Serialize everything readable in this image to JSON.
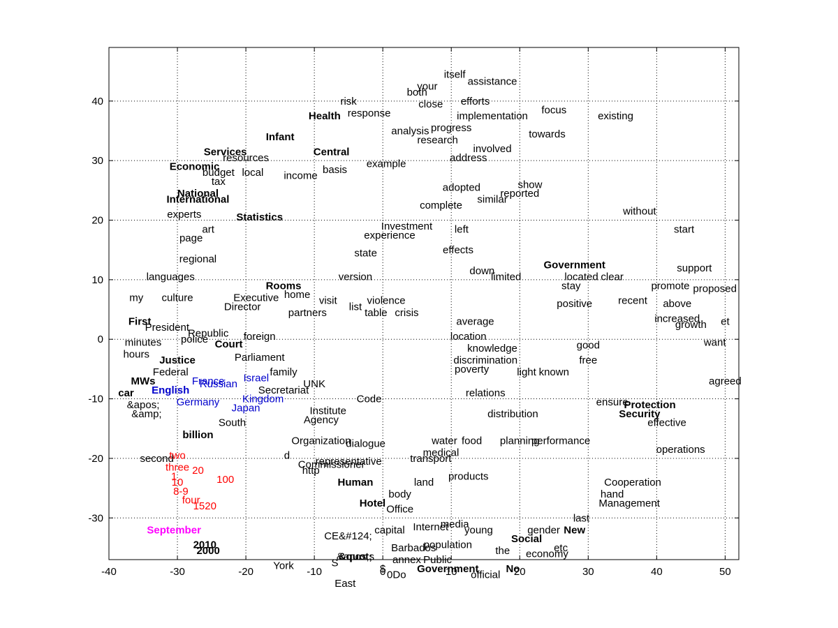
{
  "chart_data": {
    "type": "scatter",
    "title": "",
    "xlabel": "",
    "ylabel": "",
    "xlim": [
      -40,
      52
    ],
    "ylim": [
      -37,
      49
    ],
    "xticks": [
      -40,
      -30,
      -20,
      -10,
      0,
      10,
      20,
      30,
      40,
      50
    ],
    "yticks": [
      -30,
      -20,
      -10,
      0,
      10,
      20,
      30,
      40
    ],
    "xtick_labels": [
      "-40",
      "-30",
      "-20",
      "-10",
      "0",
      "10",
      "20",
      "30",
      "40",
      "50"
    ],
    "ytick_labels": [
      "-30",
      "-20",
      "-10",
      "0",
      "10",
      "20",
      "30",
      "40"
    ],
    "grid": true,
    "grid_style": "dotted",
    "colors": {
      "default": "#000000",
      "country": "#0000cc",
      "number": "#ff0000",
      "month": "#ff00ff"
    },
    "points": [
      {
        "label": "itself",
        "x": 10.5,
        "y": 44.5
      },
      {
        "label": "your",
        "x": 6.5,
        "y": 42.5
      },
      {
        "label": "both",
        "x": 5,
        "y": 41.5
      },
      {
        "label": "assistance",
        "x": 16,
        "y": 43.3
      },
      {
        "label": "risk",
        "x": -5,
        "y": 40
      },
      {
        "label": "close",
        "x": 7,
        "y": 39.5
      },
      {
        "label": "efforts",
        "x": 13.5,
        "y": 40
      },
      {
        "label": "focus",
        "x": 25,
        "y": 38.5
      },
      {
        "label": "existing",
        "x": 34,
        "y": 37.5
      },
      {
        "label": "Health",
        "x": -8.5,
        "y": 37.5,
        "bold": true
      },
      {
        "label": "implementation",
        "x": 16,
        "y": 37.5
      },
      {
        "label": "response",
        "x": -2,
        "y": 38
      },
      {
        "label": "progress",
        "x": 10,
        "y": 35.5
      },
      {
        "label": "towards",
        "x": 24,
        "y": 34.5
      },
      {
        "label": "Infant",
        "x": -15,
        "y": 34,
        "bold": true
      },
      {
        "label": "analysis",
        "x": 4,
        "y": 35
      },
      {
        "label": "research",
        "x": 8,
        "y": 33.5
      },
      {
        "label": "involved",
        "x": 16,
        "y": 32
      },
      {
        "label": "Services",
        "x": -23,
        "y": 31.5,
        "bold": true
      },
      {
        "label": "Central",
        "x": -7.5,
        "y": 31.5,
        "bold": true
      },
      {
        "label": "address",
        "x": 12.5,
        "y": 30.5
      },
      {
        "label": "resources",
        "x": -20,
        "y": 30.5
      },
      {
        "label": "example",
        "x": 0.5,
        "y": 29.5
      },
      {
        "label": "Economic",
        "x": -27.5,
        "y": 29,
        "bold": true
      },
      {
        "label": "budget",
        "x": -24,
        "y": 28
      },
      {
        "label": "local",
        "x": -19,
        "y": 28
      },
      {
        "label": "income",
        "x": -12,
        "y": 27.5
      },
      {
        "label": "basis",
        "x": -7,
        "y": 28.5
      },
      {
        "label": "tax",
        "x": -24,
        "y": 26.5
      },
      {
        "label": "adopted",
        "x": 11.5,
        "y": 25.5
      },
      {
        "label": "show",
        "x": 21.5,
        "y": 26
      },
      {
        "label": "reported",
        "x": 20,
        "y": 24.5
      },
      {
        "label": "National",
        "x": -27,
        "y": 24.5,
        "bold": true
      },
      {
        "label": "International",
        "x": -27,
        "y": 23.5,
        "bold": true
      },
      {
        "label": "complete",
        "x": 8.5,
        "y": 22.5
      },
      {
        "label": "similar",
        "x": 16,
        "y": 23.5
      },
      {
        "label": "Statistics",
        "x": -18,
        "y": 20.5,
        "bold": true
      },
      {
        "label": "experts",
        "x": -29,
        "y": 21
      },
      {
        "label": "without",
        "x": 37.5,
        "y": 21.5
      },
      {
        "label": "Investment",
        "x": 3.5,
        "y": 19
      },
      {
        "label": "left",
        "x": 11.5,
        "y": 18.5
      },
      {
        "label": "art",
        "x": -25.5,
        "y": 18.5
      },
      {
        "label": "experience",
        "x": 1,
        "y": 17.5
      },
      {
        "label": "start",
        "x": 44,
        "y": 18.5
      },
      {
        "label": "page",
        "x": -28,
        "y": 17
      },
      {
        "label": "effects",
        "x": 11,
        "y": 15
      },
      {
        "label": "state",
        "x": -2.5,
        "y": 14.5
      },
      {
        "label": "Government",
        "x": 28,
        "y": 12.5,
        "bold": true
      },
      {
        "label": "regional",
        "x": -27,
        "y": 13.5
      },
      {
        "label": "languages",
        "x": -31,
        "y": 10.5
      },
      {
        "label": "version",
        "x": -4,
        "y": 10.5
      },
      {
        "label": "down",
        "x": 14.5,
        "y": 11.5
      },
      {
        "label": "limited",
        "x": 18,
        "y": 10.5
      },
      {
        "label": "located",
        "x": 29,
        "y": 10.5
      },
      {
        "label": "clear",
        "x": 33.5,
        "y": 10.5
      },
      {
        "label": "support",
        "x": 45.5,
        "y": 12
      },
      {
        "label": "Rooms",
        "x": -14.5,
        "y": 9,
        "bold": true
      },
      {
        "label": "stay",
        "x": 27.5,
        "y": 9
      },
      {
        "label": "promote",
        "x": 42,
        "y": 9
      },
      {
        "label": "proposed",
        "x": 48.5,
        "y": 8.5
      },
      {
        "label": "my",
        "x": -36,
        "y": 7
      },
      {
        "label": "culture",
        "x": -30,
        "y": 7
      },
      {
        "label": "Executive",
        "x": -18.5,
        "y": 7
      },
      {
        "label": "home",
        "x": -12.5,
        "y": 7.5
      },
      {
        "label": "visit",
        "x": -8,
        "y": 6.5
      },
      {
        "label": "list",
        "x": -4,
        "y": 5.5
      },
      {
        "label": "violence",
        "x": 0.5,
        "y": 6.5
      },
      {
        "label": "table",
        "x": -1,
        "y": 4.5
      },
      {
        "label": "crisis",
        "x": 3.5,
        "y": 4.5
      },
      {
        "label": "positive",
        "x": 28,
        "y": 6
      },
      {
        "label": "recent",
        "x": 36.5,
        "y": 6.5
      },
      {
        "label": "above",
        "x": 43,
        "y": 6
      },
      {
        "label": "Director",
        "x": -20.5,
        "y": 5.5
      },
      {
        "label": "partners",
        "x": -11,
        "y": 4.5
      },
      {
        "label": "average",
        "x": 13.5,
        "y": 3
      },
      {
        "label": "increased",
        "x": 43,
        "y": 3.5
      },
      {
        "label": "growth",
        "x": 45,
        "y": 2.5
      },
      {
        "label": "et",
        "x": 50,
        "y": 3
      },
      {
        "label": "First",
        "x": -35.5,
        "y": 3,
        "bold": true
      },
      {
        "label": "President",
        "x": -31.5,
        "y": 2
      },
      {
        "label": "Republic",
        "x": -25.5,
        "y": 1
      },
      {
        "label": "location",
        "x": 12.5,
        "y": 0.5
      },
      {
        "label": "police",
        "x": -27.5,
        "y": 0
      },
      {
        "label": "foreign",
        "x": -18,
        "y": 0.5
      },
      {
        "label": "Court",
        "x": -22.5,
        "y": -0.8,
        "bold": true
      },
      {
        "label": "minutes",
        "x": -35,
        "y": -0.5
      },
      {
        "label": "knowledge",
        "x": 16,
        "y": -1.5
      },
      {
        "label": "good",
        "x": 30,
        "y": -1
      },
      {
        "label": "want",
        "x": 48.5,
        "y": -0.5
      },
      {
        "label": "hours",
        "x": -36,
        "y": -2.5
      },
      {
        "label": "Justice",
        "x": -30,
        "y": -3.5,
        "bold": true
      },
      {
        "label": "Parliament",
        "x": -18,
        "y": -3
      },
      {
        "label": "discrimination",
        "x": 15,
        "y": -3.5
      },
      {
        "label": "free",
        "x": 30,
        "y": -3.5
      },
      {
        "label": "poverty",
        "x": 13,
        "y": -5
      },
      {
        "label": "Federal",
        "x": -31,
        "y": -5.5
      },
      {
        "label": "family",
        "x": -14.5,
        "y": -5.5
      },
      {
        "label": "light",
        "x": 21,
        "y": -5.5
      },
      {
        "label": "known",
        "x": 25,
        "y": -5.5
      },
      {
        "label": "Israel",
        "x": -18.5,
        "y": -6.5,
        "color": "country"
      },
      {
        "label": "MWs",
        "x": -35,
        "y": -7,
        "bold": true
      },
      {
        "label": "agreed",
        "x": 50,
        "y": -7
      },
      {
        "label": "France",
        "x": -25.5,
        "y": -7,
        "color": "country"
      },
      {
        "label": "Russian",
        "x": -24,
        "y": -7.5,
        "color": "country"
      },
      {
        "label": "UNK",
        "x": -10,
        "y": -7.5
      },
      {
        "label": "English",
        "x": -31,
        "y": -8.5,
        "color": "country",
        "bold": true
      },
      {
        "label": "Secretariat",
        "x": -14.5,
        "y": -8.5
      },
      {
        "label": "car",
        "x": -37.5,
        "y": -9,
        "bold": true
      },
      {
        "label": "relations",
        "x": 15,
        "y": -9
      },
      {
        "label": "Kingdom",
        "x": -17.5,
        "y": -10,
        "color": "country"
      },
      {
        "label": "Code",
        "x": -2,
        "y": -10
      },
      {
        "label": "ensure",
        "x": 33.5,
        "y": -10.5
      },
      {
        "label": "Protection",
        "x": 39,
        "y": -11,
        "bold": true
      },
      {
        "label": "Germany",
        "x": -27,
        "y": -10.5,
        "color": "country"
      },
      {
        "label": "&apos;",
        "x": -35,
        "y": -11
      },
      {
        "label": "Japan",
        "x": -20,
        "y": -11.5,
        "color": "country"
      },
      {
        "label": "&amp;",
        "x": -34.5,
        "y": -12.5
      },
      {
        "label": "Institute",
        "x": -8,
        "y": -12
      },
      {
        "label": "Agency",
        "x": -9,
        "y": -13.5
      },
      {
        "label": "South",
        "x": -22,
        "y": -14
      },
      {
        "label": "Security",
        "x": 37.5,
        "y": -12.5,
        "bold": true
      },
      {
        "label": "distribution",
        "x": 19,
        "y": -12.5
      },
      {
        "label": "effective",
        "x": 41.5,
        "y": -14
      },
      {
        "label": "billion",
        "x": -27,
        "y": -16,
        "bold": true
      },
      {
        "label": "Organization",
        "x": -9,
        "y": -17
      },
      {
        "label": "dialogue",
        "x": -2.5,
        "y": -17.5
      },
      {
        "label": "water",
        "x": 9,
        "y": -17
      },
      {
        "label": "food",
        "x": 13,
        "y": -17
      },
      {
        "label": "planning",
        "x": 20,
        "y": -17
      },
      {
        "label": "performance",
        "x": 26,
        "y": -17
      },
      {
        "label": "operations",
        "x": 43.5,
        "y": -18.5
      },
      {
        "label": "medical",
        "x": 8.5,
        "y": -19
      },
      {
        "label": "second",
        "x": -33,
        "y": -20
      },
      {
        "label": "two",
        "x": -30,
        "y": -19.5,
        "color": "number"
      },
      {
        "label": "d",
        "x": -14,
        "y": -19.5
      },
      {
        "label": "transport",
        "x": 7,
        "y": -20
      },
      {
        "label": "representative",
        "x": -5,
        "y": -20.5
      },
      {
        "label": "Commissioner",
        "x": -7.5,
        "y": -21
      },
      {
        "label": "three",
        "x": -30,
        "y": -21.5,
        "color": "number"
      },
      {
        "label": "http",
        "x": -10.5,
        "y": -22
      },
      {
        "label": "products",
        "x": 12.5,
        "y": -23
      },
      {
        "label": "Human",
        "x": -4,
        "y": -24,
        "bold": true
      },
      {
        "label": "land",
        "x": 6,
        "y": -24
      },
      {
        "label": "Cooperation",
        "x": 36.5,
        "y": -24
      },
      {
        "label": "hand",
        "x": 33.5,
        "y": -26
      },
      {
        "label": "body",
        "x": 2.5,
        "y": -26
      },
      {
        "label": "Management",
        "x": 36,
        "y": -27.5
      },
      {
        "label": "Hotel",
        "x": -1.5,
        "y": -27.5,
        "bold": true
      },
      {
        "label": "Office",
        "x": 2.5,
        "y": -28.5
      },
      {
        "label": "last",
        "x": 29,
        "y": -30
      },
      {
        "label": "Internet",
        "x": 7,
        "y": -31.5
      },
      {
        "label": "media",
        "x": 10.5,
        "y": -31
      },
      {
        "label": "capital",
        "x": 1,
        "y": -32
      },
      {
        "label": "gender",
        "x": 23.5,
        "y": -32
      },
      {
        "label": "New",
        "x": 28,
        "y": -32,
        "bold": true
      },
      {
        "label": "young",
        "x": 14,
        "y": -32
      },
      {
        "label": "Social",
        "x": 21,
        "y": -33.5,
        "bold": true
      },
      {
        "label": "CE",
        "x": -7.5,
        "y": -33
      },
      {
        "label": "&#124;",
        "x": -4,
        "y": -33
      },
      {
        "label": "population",
        "x": 9.5,
        "y": -34.5
      },
      {
        "label": "Barbados",
        "x": 4.5,
        "y": -35
      },
      {
        "label": "the",
        "x": 17.5,
        "y": -35.5
      },
      {
        "label": "etc",
        "x": 26,
        "y": -35
      },
      {
        "label": "economy",
        "x": 24,
        "y": -36
      },
      {
        "label": "&quot;",
        "x": -4,
        "y": -36.5,
        "bold": true
      },
      {
        "label": "&apos;s",
        "x": -4,
        "y": -36.5
      },
      {
        "label": "Public",
        "x": 8,
        "y": -37
      },
      {
        "label": "annex",
        "x": 3.5,
        "y": -37
      },
      {
        "label": "S",
        "x": -7,
        "y": -37.5
      },
      {
        "label": "York",
        "x": -14.5,
        "y": -38
      },
      {
        "label": "Government",
        "x": 9.5,
        "y": -38.5,
        "bold": true
      },
      {
        "label": "$",
        "x": 0,
        "y": -38.5
      },
      {
        "label": "No",
        "x": 19,
        "y": -38.5,
        "bold": true
      },
      {
        "label": "official",
        "x": 15,
        "y": -39.5
      },
      {
        "label": "0Do",
        "x": 2,
        "y": -39.5
      },
      {
        "label": "East",
        "x": -5.5,
        "y": -41
      },
      {
        "label": "September",
        "x": -30.5,
        "y": -32,
        "color": "month",
        "bold": true
      },
      {
        "label": "2000",
        "x": -25.5,
        "y": -35.5,
        "bold": true
      },
      {
        "label": "2010",
        "x": -26,
        "y": -34.5,
        "bold": true
      },
      {
        "label": "100",
        "x": -23,
        "y": -23.5,
        "color": "number"
      },
      {
        "label": "20",
        "x": -27,
        "y": -22,
        "color": "number"
      },
      {
        "label": "10",
        "x": -30,
        "y": -24,
        "color": "number"
      },
      {
        "label": "1",
        "x": -30.5,
        "y": -23,
        "color": "number"
      },
      {
        "label": "8-9",
        "x": -29.5,
        "y": -25.5,
        "color": "number"
      },
      {
        "label": "four",
        "x": -28,
        "y": -27,
        "color": "number"
      },
      {
        "label": "1520",
        "x": -26,
        "y": -28,
        "color": "number"
      }
    ]
  }
}
